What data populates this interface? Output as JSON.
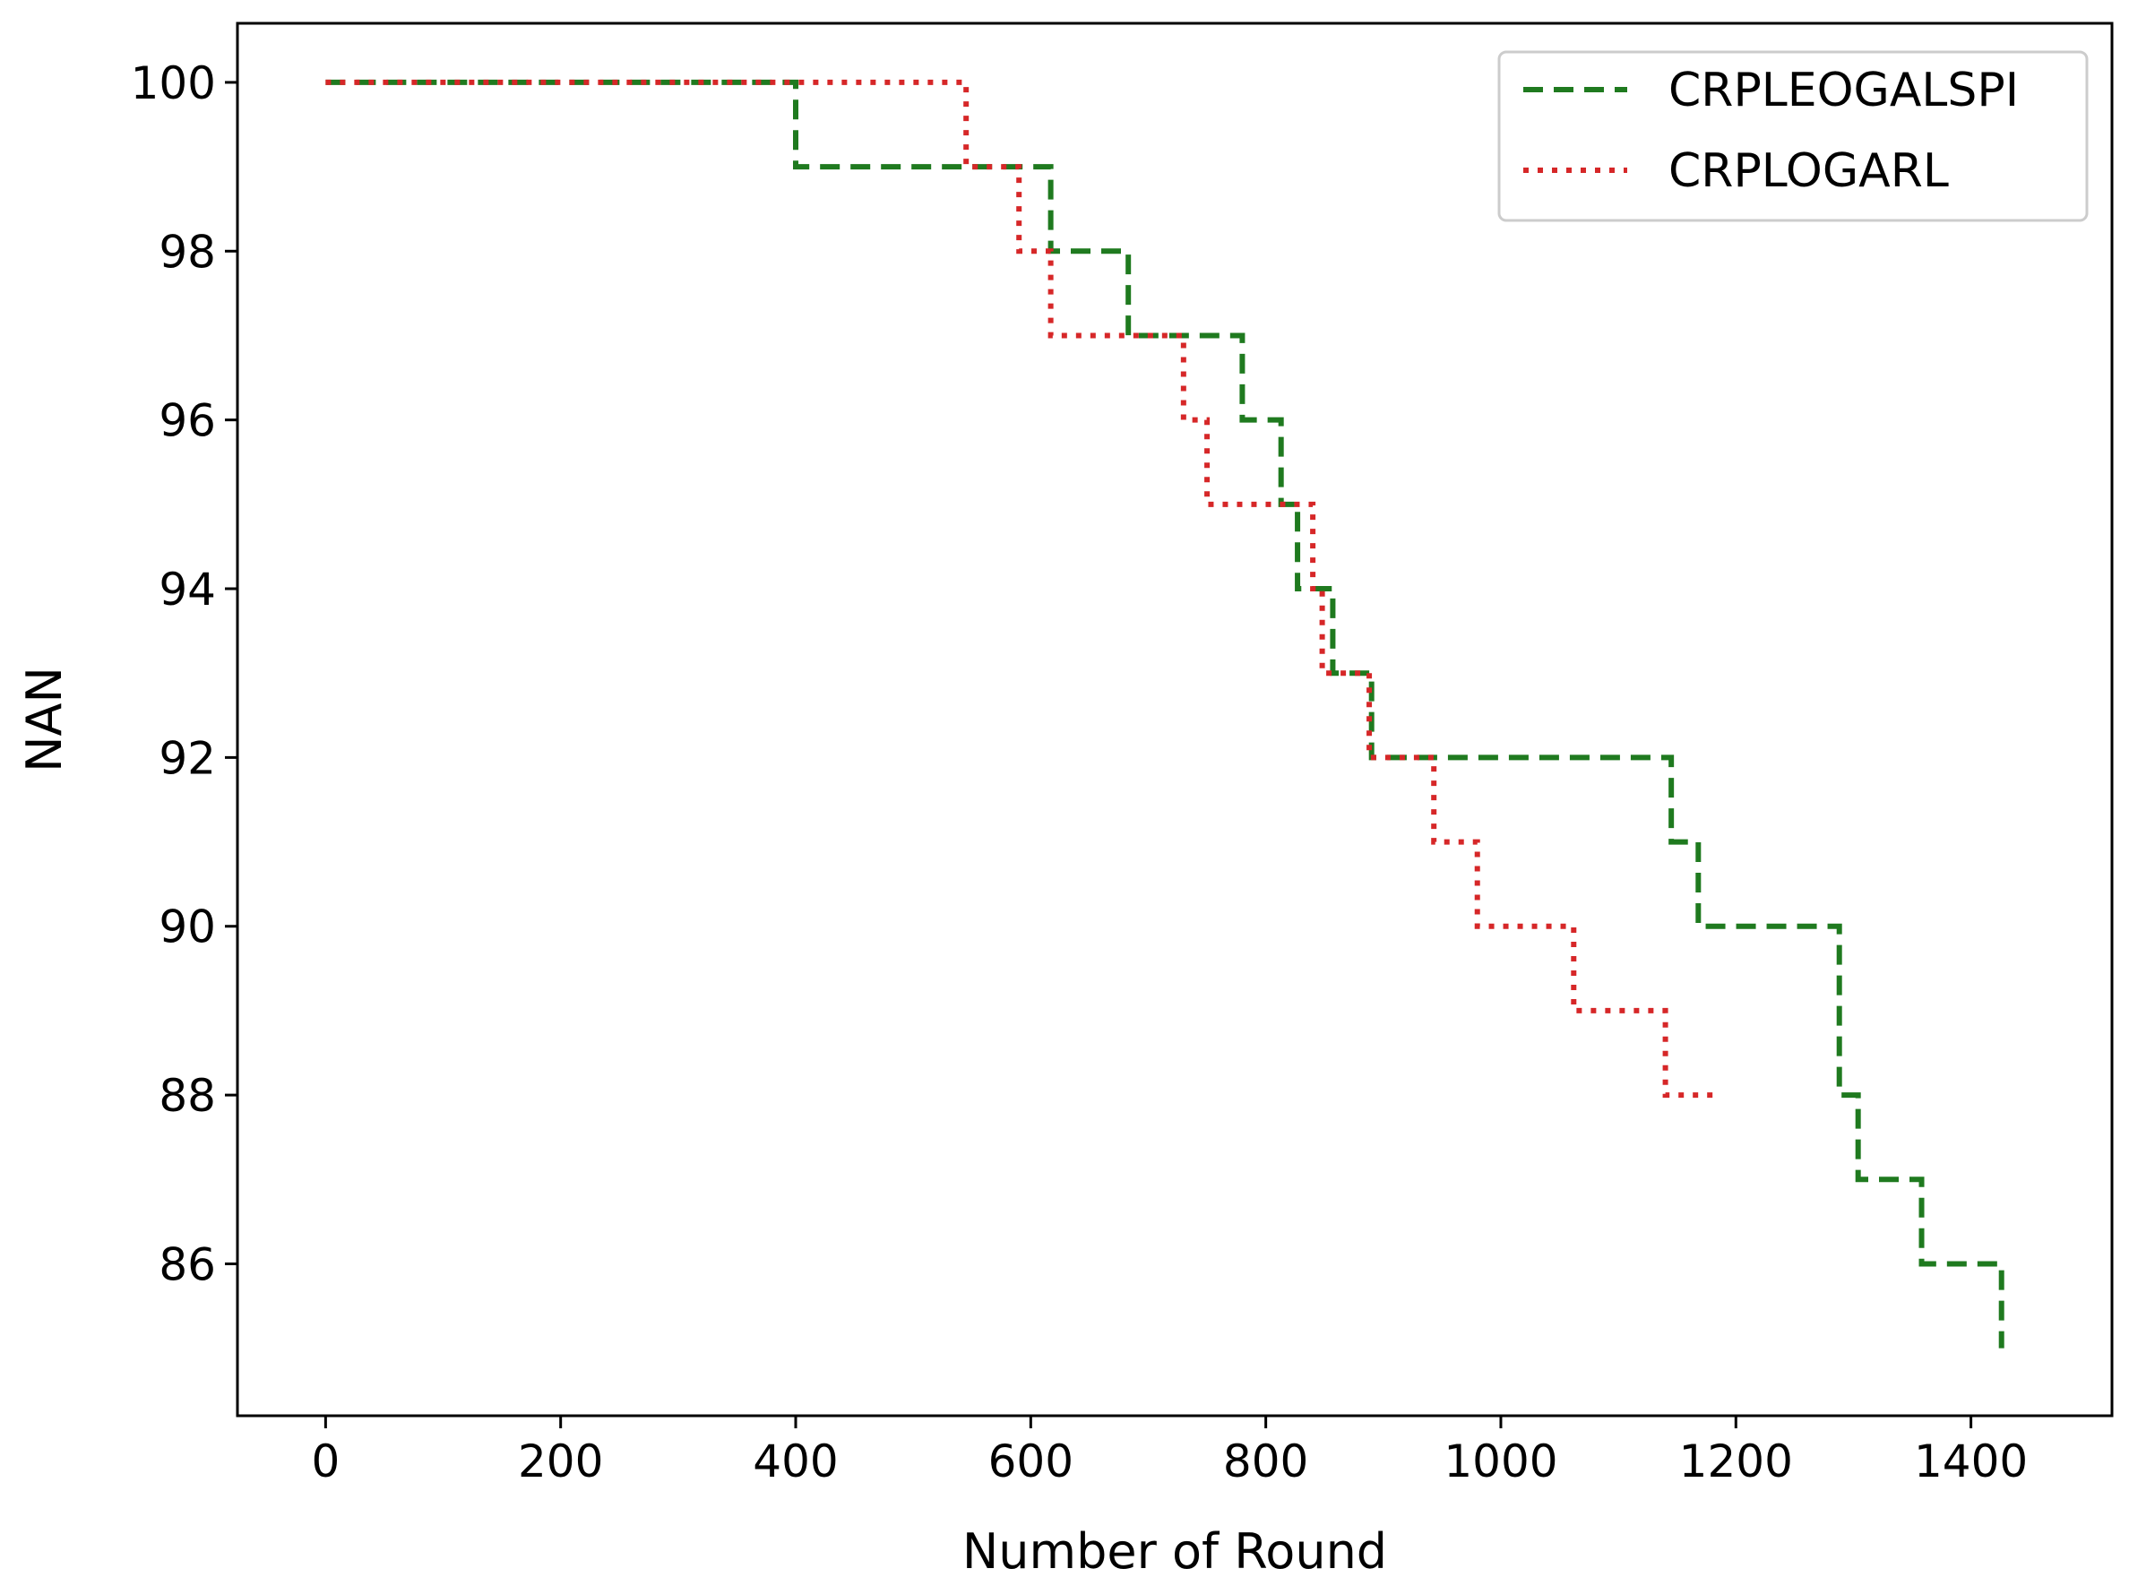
{
  "chart_data": {
    "type": "line",
    "xlabel": "Number of Round",
    "ylabel": "NAN",
    "xlim": [
      -75,
      1520
    ],
    "ylim": [
      84.2,
      100.7
    ],
    "xticks": [
      0,
      200,
      400,
      600,
      800,
      1000,
      1200,
      1400
    ],
    "yticks": [
      86,
      88,
      90,
      92,
      94,
      96,
      98,
      100
    ],
    "xtick_labels": [
      "0",
      "200",
      "400",
      "600",
      "800",
      "1000",
      "1200",
      "1400"
    ],
    "ytick_labels": [
      "86",
      "88",
      "90",
      "92",
      "94",
      "96",
      "98",
      "100"
    ],
    "grid": false,
    "legend_position": "top-right",
    "step": "post",
    "series": [
      {
        "name": "CRPLEOGALSPI",
        "color": "#1f7a1f",
        "linestyle": "dashed",
        "x": [
          0,
          400,
          617,
          683,
          780,
          813,
          827,
          857,
          890,
          1145,
          1168,
          1288,
          1304,
          1358,
          1426
        ],
        "y": [
          100,
          99,
          98,
          97,
          96,
          95,
          94,
          93,
          92,
          91,
          90,
          88,
          87,
          86,
          85
        ]
      },
      {
        "name": "CRPLOGARL",
        "color": "#d62728",
        "linestyle": "dotted",
        "x": [
          0,
          545,
          590,
          617,
          730,
          750,
          840,
          848,
          888,
          943,
          980,
          1062,
          1140,
          1185
        ],
        "y": [
          100,
          99,
          98,
          97,
          96,
          95,
          94,
          93,
          92,
          91,
          90,
          89,
          88,
          88
        ]
      }
    ]
  }
}
